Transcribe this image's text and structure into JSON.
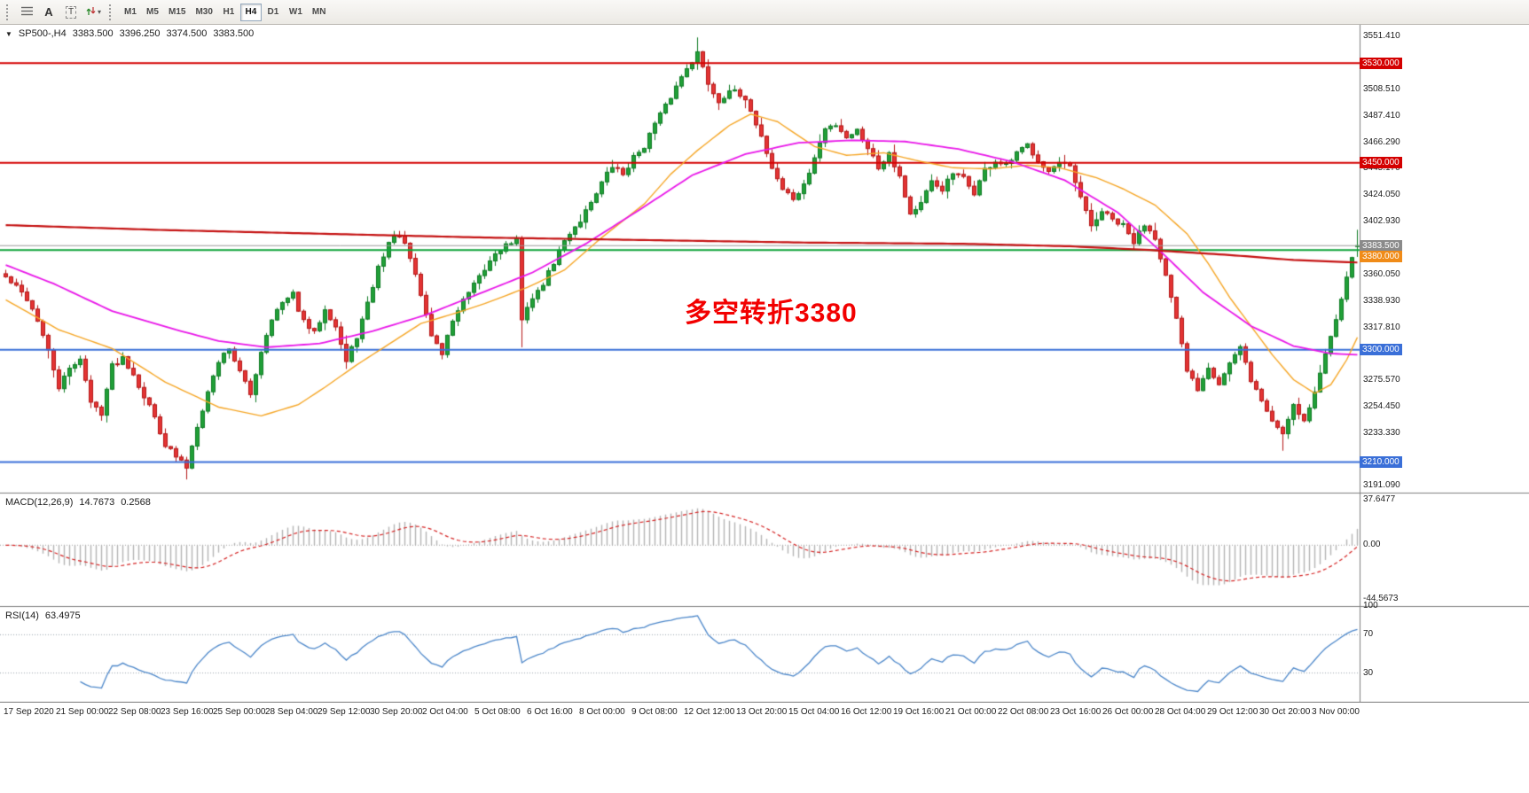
{
  "toolbar": {
    "tool_a_label": "A",
    "tool_t_label": "T",
    "caret_glyph": "▾",
    "timeframes": [
      "M1",
      "M5",
      "M15",
      "M30",
      "H1",
      "H4",
      "D1",
      "W1",
      "MN"
    ],
    "active_timeframe": "H4"
  },
  "chart_header": {
    "menu_glyph": "▼",
    "symbol": "SP500-,H4",
    "open": "3383.500",
    "high": "3396.250",
    "low": "3374.500",
    "close": "3383.500"
  },
  "annotation": {
    "text": "多空转折3380",
    "color": "#f20000"
  },
  "indicators": {
    "macd": {
      "label": "MACD(12,26,9)",
      "value": "14.7673",
      "signal_value": "0.2568",
      "axis": [
        "37.6477",
        "0.00",
        "-44.5673"
      ]
    },
    "rsi": {
      "label": "RSI(14)",
      "value": "63.4975",
      "axis": [
        "100",
        "70",
        "30"
      ],
      "levels": [
        70,
        30
      ]
    }
  },
  "price_axis": {
    "ticks": [
      "3551.410",
      "3508.510",
      "3487.410",
      "3466.290",
      "3445.170",
      "3424.050",
      "3402.930",
      "3360.050",
      "3338.930",
      "3317.810",
      "3296.690",
      "3275.570",
      "3254.450",
      "3233.330",
      "3191.090"
    ],
    "badges": [
      {
        "label": "3530.000",
        "price": 3530,
        "color": "#d40000"
      },
      {
        "label": "3450.000",
        "price": 3450,
        "color": "#d40000"
      },
      {
        "label": "3383.500",
        "price": 3383.5,
        "color": "#8a8a8a"
      },
      {
        "label": "3380.000",
        "price": 3380,
        "color": "#f08b18",
        "offset": 7
      },
      {
        "label": "3300.000",
        "price": 3300,
        "color": "#3a6fd8"
      },
      {
        "label": "3210.000",
        "price": 3210,
        "color": "#3a6fd8"
      }
    ]
  },
  "time_axis": [
    "17 Sep 2020",
    "21 Sep 00:00",
    "22 Sep 08:00",
    "23 Sep 16:00",
    "25 Sep 00:00",
    "28 Sep 04:00",
    "29 Sep 12:00",
    "30 Sep 20:00",
    "2 Oct 04:00",
    "5 Oct 08:00",
    "6 Oct 16:00",
    "8 Oct 00:00",
    "9 Oct 08:00",
    "12 Oct 12:00",
    "13 Oct 20:00",
    "15 Oct 04:00",
    "16 Oct 12:00",
    "19 Oct 16:00",
    "21 Oct 00:00",
    "22 Oct 08:00",
    "23 Oct 16:00",
    "26 Oct 00:00",
    "28 Oct 04:00",
    "29 Oct 12:00",
    "30 Oct 20:00",
    "3 Nov 00:00"
  ],
  "chart_data": {
    "type": "candlestick",
    "symbol": "SP500",
    "timeframe": "H4",
    "visible_price_range": [
      3186,
      3557.5
    ],
    "candle_count": 255,
    "up_color": "#21a038",
    "up_border": "#0c7a22",
    "down_color": "#e43434",
    "down_border": "#b31515",
    "price_path": [
      [
        0,
        3358
      ],
      [
        2,
        3350
      ],
      [
        4,
        3341
      ],
      [
        6,
        3324
      ],
      [
        8,
        3298
      ],
      [
        10,
        3270
      ],
      [
        12,
        3284
      ],
      [
        14,
        3294
      ],
      [
        16,
        3257
      ],
      [
        18,
        3250
      ],
      [
        20,
        3287
      ],
      [
        22,
        3294
      ],
      [
        24,
        3281
      ],
      [
        26,
        3263
      ],
      [
        28,
        3246
      ],
      [
        30,
        3224
      ],
      [
        32,
        3214
      ],
      [
        34,
        3206
      ],
      [
        36,
        3240
      ],
      [
        38,
        3266
      ],
      [
        40,
        3291
      ],
      [
        42,
        3302
      ],
      [
        44,
        3282
      ],
      [
        46,
        3264
      ],
      [
        48,
        3299
      ],
      [
        50,
        3326
      ],
      [
        52,
        3337
      ],
      [
        54,
        3344
      ],
      [
        56,
        3322
      ],
      [
        58,
        3313
      ],
      [
        60,
        3334
      ],
      [
        62,
        3319
      ],
      [
        64,
        3290
      ],
      [
        66,
        3311
      ],
      [
        68,
        3336
      ],
      [
        70,
        3366
      ],
      [
        72,
        3386
      ],
      [
        74,
        3393
      ],
      [
        76,
        3373
      ],
      [
        78,
        3344
      ],
      [
        80,
        3312
      ],
      [
        82,
        3297
      ],
      [
        84,
        3324
      ],
      [
        86,
        3339
      ],
      [
        88,
        3351
      ],
      [
        90,
        3364
      ],
      [
        92,
        3378
      ],
      [
        94,
        3384
      ],
      [
        96,
        3388
      ],
      [
        97,
        3322
      ],
      [
        98,
        3336
      ],
      [
        100,
        3346
      ],
      [
        102,
        3361
      ],
      [
        104,
        3379
      ],
      [
        106,
        3394
      ],
      [
        108,
        3404
      ],
      [
        110,
        3419
      ],
      [
        112,
        3434
      ],
      [
        114,
        3447
      ],
      [
        116,
        3441
      ],
      [
        118,
        3454
      ],
      [
        120,
        3464
      ],
      [
        122,
        3481
      ],
      [
        124,
        3495
      ],
      [
        126,
        3511
      ],
      [
        128,
        3527
      ],
      [
        130,
        3538
      ],
      [
        132,
        3514
      ],
      [
        134,
        3499
      ],
      [
        136,
        3509
      ],
      [
        138,
        3503
      ],
      [
        140,
        3493
      ],
      [
        142,
        3471
      ],
      [
        144,
        3446
      ],
      [
        146,
        3429
      ],
      [
        148,
        3421
      ],
      [
        150,
        3431
      ],
      [
        152,
        3454
      ],
      [
        154,
        3477
      ],
      [
        156,
        3481
      ],
      [
        158,
        3471
      ],
      [
        160,
        3476
      ],
      [
        162,
        3463
      ],
      [
        164,
        3446
      ],
      [
        166,
        3459
      ],
      [
        168,
        3439
      ],
      [
        170,
        3409
      ],
      [
        172,
        3417
      ],
      [
        174,
        3434
      ],
      [
        176,
        3429
      ],
      [
        178,
        3441
      ],
      [
        180,
        3437
      ],
      [
        182,
        3426
      ],
      [
        184,
        3444
      ],
      [
        186,
        3451
      ],
      [
        188,
        3447
      ],
      [
        190,
        3457
      ],
      [
        192,
        3464
      ],
      [
        194,
        3453
      ],
      [
        196,
        3443
      ],
      [
        198,
        3449
      ],
      [
        200,
        3446
      ],
      [
        202,
        3421
      ],
      [
        204,
        3399
      ],
      [
        206,
        3411
      ],
      [
        208,
        3404
      ],
      [
        210,
        3399
      ],
      [
        212,
        3386
      ],
      [
        214,
        3401
      ],
      [
        216,
        3391
      ],
      [
        218,
        3359
      ],
      [
        220,
        3323
      ],
      [
        222,
        3283
      ],
      [
        224,
        3269
      ],
      [
        226,
        3287
      ],
      [
        228,
        3273
      ],
      [
        230,
        3289
      ],
      [
        232,
        3301
      ],
      [
        234,
        3276
      ],
      [
        236,
        3259
      ],
      [
        238,
        3243
      ],
      [
        240,
        3233
      ],
      [
        242,
        3257
      ],
      [
        244,
        3243
      ],
      [
        246,
        3266
      ],
      [
        248,
        3296
      ],
      [
        250,
        3326
      ],
      [
        252,
        3360
      ],
      [
        254,
        3383.5
      ]
    ],
    "wick_overrides": {
      "34": {
        "low": 3196
      },
      "97": {
        "low": 3302
      },
      "130": {
        "high": 3550.5
      },
      "240": {
        "low": 3219
      }
    },
    "last_candle": {
      "open": 3383.5,
      "high": 3396.25,
      "low": 3374.5,
      "close": 3383.5
    },
    "moving_averages": [
      {
        "name": "ma-fast",
        "color": "#f5a524",
        "width": 1.4,
        "path": [
          [
            0,
            3340
          ],
          [
            10,
            3316
          ],
          [
            20,
            3301
          ],
          [
            30,
            3274
          ],
          [
            40,
            3254
          ],
          [
            48,
            3247
          ],
          [
            55,
            3256
          ],
          [
            60,
            3270
          ],
          [
            66,
            3288
          ],
          [
            70,
            3299
          ],
          [
            78,
            3321
          ],
          [
            85,
            3330
          ],
          [
            90,
            3337
          ],
          [
            98,
            3350
          ],
          [
            105,
            3364
          ],
          [
            112,
            3390
          ],
          [
            120,
            3417
          ],
          [
            125,
            3441
          ],
          [
            130,
            3460
          ],
          [
            136,
            3480
          ],
          [
            140,
            3489
          ],
          [
            145,
            3483
          ],
          [
            152,
            3463
          ],
          [
            158,
            3456
          ],
          [
            165,
            3458
          ],
          [
            172,
            3451
          ],
          [
            178,
            3446
          ],
          [
            185,
            3445
          ],
          [
            192,
            3448
          ],
          [
            198,
            3446
          ],
          [
            205,
            3438
          ],
          [
            210,
            3429
          ],
          [
            216,
            3416
          ],
          [
            222,
            3393
          ],
          [
            226,
            3369
          ],
          [
            230,
            3342
          ],
          [
            234,
            3319
          ],
          [
            238,
            3296
          ],
          [
            242,
            3276
          ],
          [
            246,
            3265
          ],
          [
            249,
            3272
          ],
          [
            252,
            3292
          ],
          [
            254,
            3310
          ]
        ]
      },
      {
        "name": "ma-medium",
        "color": "#e816e8",
        "width": 1.8,
        "path": [
          [
            0,
            3368
          ],
          [
            9,
            3353
          ],
          [
            20,
            3331
          ],
          [
            32,
            3316
          ],
          [
            40,
            3307
          ],
          [
            49,
            3302
          ],
          [
            59,
            3305
          ],
          [
            69,
            3315
          ],
          [
            79,
            3328
          ],
          [
            89,
            3345
          ],
          [
            99,
            3362
          ],
          [
            109,
            3385
          ],
          [
            119,
            3412
          ],
          [
            129,
            3440
          ],
          [
            139,
            3457
          ],
          [
            149,
            3466
          ],
          [
            159,
            3468
          ],
          [
            169,
            3467
          ],
          [
            179,
            3461
          ],
          [
            189,
            3451
          ],
          [
            199,
            3436
          ],
          [
            209,
            3410
          ],
          [
            217,
            3379
          ],
          [
            225,
            3346
          ],
          [
            234,
            3319
          ],
          [
            242,
            3303
          ],
          [
            249,
            3297
          ],
          [
            254,
            3296
          ]
        ]
      },
      {
        "name": "ma-slow",
        "color": "#c41111",
        "width": 2.2,
        "path": [
          [
            0,
            3400
          ],
          [
            30,
            3396
          ],
          [
            60,
            3393
          ],
          [
            90,
            3390
          ],
          [
            120,
            3388
          ],
          [
            150,
            3386
          ],
          [
            180,
            3385
          ],
          [
            200,
            3383
          ],
          [
            215,
            3380
          ],
          [
            230,
            3376
          ],
          [
            242,
            3372
          ],
          [
            254,
            3370
          ]
        ]
      }
    ],
    "hlines": [
      {
        "price": 3530,
        "color": "#d40000",
        "width": 2
      },
      {
        "price": 3450,
        "color": "#d40000",
        "width": 2
      },
      {
        "price": 3383.5,
        "color": "#9b9b9b",
        "width": 1
      },
      {
        "price": 3380,
        "color": "#0ea43a",
        "width": 2
      },
      {
        "price": 3300,
        "color": "#3a6fd8",
        "width": 2
      },
      {
        "price": 3210,
        "color": "#3a6fd8",
        "width": 2
      }
    ],
    "macd_style": {
      "histogram": "#b4b4b4",
      "signal": "#d42222",
      "zero_line": "#9a9a9a",
      "scale": 0.85
    },
    "rsi_style": {
      "line": "#4b86c9",
      "level_line": "#9aa5ad"
    }
  }
}
